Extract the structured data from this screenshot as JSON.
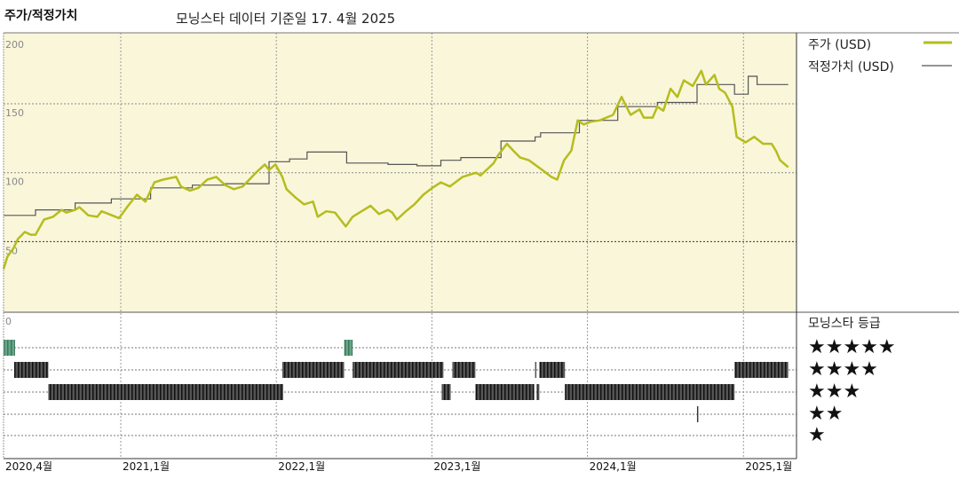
{
  "header": {
    "title": "주가/적정가치",
    "subtitle": "모닝스타 데이터 기준일 17. 4월 2025"
  },
  "legend": {
    "price_label": "주가 (USD)",
    "fair_value_label": "적정가치 (USD)",
    "rating_title": "모닝스타 등급",
    "rating_rows": [
      "★★★★★",
      "★★★★",
      "★★★",
      "★★",
      "★"
    ]
  },
  "colors": {
    "price": "#b5bd1e",
    "fair_value": "#555555",
    "plot_background": "#faf6da",
    "five_star": "#4e8f6e",
    "rating_bar": "#333333"
  },
  "chart_data": {
    "type": "line",
    "xlim": [
      "2020-04-01",
      "2025-04-17"
    ],
    "ylim": [
      0,
      200
    ],
    "y_ticks": [
      "200",
      "150",
      "100",
      "50",
      "0"
    ],
    "x_ticks": [
      {
        "date": "2020-04-01",
        "label": "2020,4월"
      },
      {
        "date": "2021-01-01",
        "label": "2021,1월"
      },
      {
        "date": "2022-01-01",
        "label": "2022,1월"
      },
      {
        "date": "2023-01-01",
        "label": "2023,1월"
      },
      {
        "date": "2024-01-01",
        "label": "2024,1월"
      },
      {
        "date": "2025-01-01",
        "label": "2025,1월"
      }
    ],
    "grid": true,
    "series": [
      {
        "name": "주가 (USD)",
        "points": [
          [
            "2020-04-01",
            30
          ],
          [
            "2020-04-10",
            39
          ],
          [
            "2020-04-24",
            45
          ],
          [
            "2020-05-05",
            52
          ],
          [
            "2020-05-21",
            57
          ],
          [
            "2020-06-04",
            55
          ],
          [
            "2020-06-15",
            55
          ],
          [
            "2020-07-05",
            66
          ],
          [
            "2020-07-26",
            68
          ],
          [
            "2020-08-15",
            73
          ],
          [
            "2020-08-26",
            71
          ],
          [
            "2020-09-16",
            73
          ],
          [
            "2020-09-26",
            75
          ],
          [
            "2020-10-17",
            69
          ],
          [
            "2020-11-07",
            68
          ],
          [
            "2020-11-17",
            72
          ],
          [
            "2020-12-28",
            67
          ],
          [
            "2021-01-18",
            76
          ],
          [
            "2021-02-08",
            84
          ],
          [
            "2021-02-28",
            79
          ],
          [
            "2021-03-21",
            93
          ],
          [
            "2021-04-10",
            95
          ],
          [
            "2021-05-11",
            97
          ],
          [
            "2021-05-22",
            90
          ],
          [
            "2021-06-12",
            87
          ],
          [
            "2021-07-02",
            89
          ],
          [
            "2021-07-23",
            95
          ],
          [
            "2021-08-13",
            97
          ],
          [
            "2021-09-03",
            91
          ],
          [
            "2021-09-23",
            88
          ],
          [
            "2021-10-14",
            90
          ],
          [
            "2021-11-14",
            100
          ],
          [
            "2021-12-05",
            106
          ],
          [
            "2021-12-15",
            102
          ],
          [
            "2021-12-30",
            106
          ],
          [
            "2022-01-15",
            97
          ],
          [
            "2022-01-25",
            88
          ],
          [
            "2022-02-15",
            82
          ],
          [
            "2022-03-07",
            77
          ],
          [
            "2022-03-28",
            79
          ],
          [
            "2022-04-08",
            68
          ],
          [
            "2022-04-28",
            72
          ],
          [
            "2022-05-19",
            71
          ],
          [
            "2022-06-13",
            61
          ],
          [
            "2022-06-29",
            68
          ],
          [
            "2022-07-20",
            72
          ],
          [
            "2022-08-10",
            76
          ],
          [
            "2022-08-30",
            70
          ],
          [
            "2022-09-20",
            73
          ],
          [
            "2022-09-30",
            71
          ],
          [
            "2022-10-11",
            66
          ],
          [
            "2022-11-01",
            72
          ],
          [
            "2022-11-21",
            77
          ],
          [
            "2022-12-12",
            84
          ],
          [
            "2023-01-02",
            89
          ],
          [
            "2023-01-22",
            93
          ],
          [
            "2023-02-12",
            90
          ],
          [
            "2023-03-14",
            97
          ],
          [
            "2023-04-15",
            100
          ],
          [
            "2023-04-25",
            98
          ],
          [
            "2023-05-16",
            104
          ],
          [
            "2023-05-26",
            107
          ],
          [
            "2023-06-06",
            113
          ],
          [
            "2023-06-16",
            117
          ],
          [
            "2023-06-26",
            121
          ],
          [
            "2023-07-11",
            116
          ],
          [
            "2023-07-27",
            111
          ],
          [
            "2023-08-17",
            109
          ],
          [
            "2023-09-17",
            102
          ],
          [
            "2023-10-08",
            97
          ],
          [
            "2023-10-22",
            95
          ],
          [
            "2023-11-07",
            109
          ],
          [
            "2023-11-24",
            116
          ],
          [
            "2023-12-09",
            138
          ],
          [
            "2023-12-23",
            135
          ],
          [
            "2024-01-09",
            137
          ],
          [
            "2024-01-30",
            138
          ],
          [
            "2024-03-01",
            142
          ],
          [
            "2024-03-21",
            155
          ],
          [
            "2024-04-11",
            142
          ],
          [
            "2024-05-02",
            146
          ],
          [
            "2024-05-12",
            140
          ],
          [
            "2024-06-02",
            140
          ],
          [
            "2024-06-13",
            148
          ],
          [
            "2024-06-27",
            145
          ],
          [
            "2024-07-14",
            161
          ],
          [
            "2024-07-30",
            155
          ],
          [
            "2024-08-14",
            167
          ],
          [
            "2024-09-04",
            163
          ],
          [
            "2024-09-24",
            174
          ],
          [
            "2024-10-05",
            164
          ],
          [
            "2024-10-25",
            171
          ],
          [
            "2024-11-05",
            161
          ],
          [
            "2024-11-19",
            158
          ],
          [
            "2024-12-06",
            148
          ],
          [
            "2024-12-16",
            126
          ],
          [
            "2025-01-06",
            122
          ],
          [
            "2025-01-26",
            126
          ],
          [
            "2025-02-16",
            121
          ],
          [
            "2025-03-08",
            121
          ],
          [
            "2025-03-18",
            116
          ],
          [
            "2025-03-28",
            109
          ],
          [
            "2025-04-16",
            104
          ]
        ]
      },
      {
        "name": "적정가치 (USD)",
        "step": true,
        "points": [
          [
            "2020-04-01",
            69
          ],
          [
            "2020-06-15",
            73
          ],
          [
            "2020-09-16",
            78
          ],
          [
            "2020-12-10",
            81
          ],
          [
            "2021-03-12",
            89
          ],
          [
            "2021-06-18",
            91
          ],
          [
            "2021-09-03",
            92
          ],
          [
            "2021-12-15",
            108
          ],
          [
            "2022-02-01",
            110
          ],
          [
            "2022-03-14",
            115
          ],
          [
            "2022-06-15",
            107
          ],
          [
            "2022-09-20",
            106
          ],
          [
            "2022-11-27",
            105
          ],
          [
            "2023-01-22",
            109
          ],
          [
            "2023-03-10",
            111
          ],
          [
            "2023-06-12",
            123
          ],
          [
            "2023-08-31",
            126
          ],
          [
            "2023-09-13",
            129
          ],
          [
            "2023-12-13",
            138
          ],
          [
            "2024-03-12",
            148
          ],
          [
            "2024-06-13",
            151
          ],
          [
            "2024-09-14",
            164
          ],
          [
            "2024-12-11",
            157
          ],
          [
            "2025-01-12",
            170
          ],
          [
            "2025-02-02",
            164
          ],
          [
            "2025-04-16",
            164
          ]
        ]
      }
    ],
    "star_ratings": [
      {
        "stars": 5,
        "periods": [
          [
            "2020-04-01",
            "2020-04-28"
          ],
          [
            "2022-06-09",
            "2022-06-29"
          ]
        ]
      },
      {
        "stars": 4,
        "periods": [
          [
            "2020-04-26",
            "2020-07-15"
          ],
          [
            "2022-01-15",
            "2022-06-09"
          ],
          [
            "2022-06-29",
            "2023-01-28"
          ],
          [
            "2023-02-18",
            "2023-04-13"
          ],
          [
            "2023-08-31",
            "2023-09-02"
          ],
          [
            "2023-09-10",
            "2023-11-09"
          ],
          [
            "2024-12-11",
            "2025-04-16"
          ]
        ]
      },
      {
        "stars": 3,
        "periods": [
          [
            "2020-07-15",
            "2022-01-17"
          ],
          [
            "2023-01-24",
            "2023-02-14"
          ],
          [
            "2023-04-13",
            "2023-08-29"
          ],
          [
            "2023-09-04",
            "2023-09-10"
          ],
          [
            "2023-11-09",
            "2024-12-11"
          ]
        ]
      },
      {
        "stars": 2,
        "periods": [
          [
            "2024-09-14",
            "2024-09-15"
          ]
        ]
      },
      {
        "stars": 1,
        "periods": []
      }
    ]
  }
}
